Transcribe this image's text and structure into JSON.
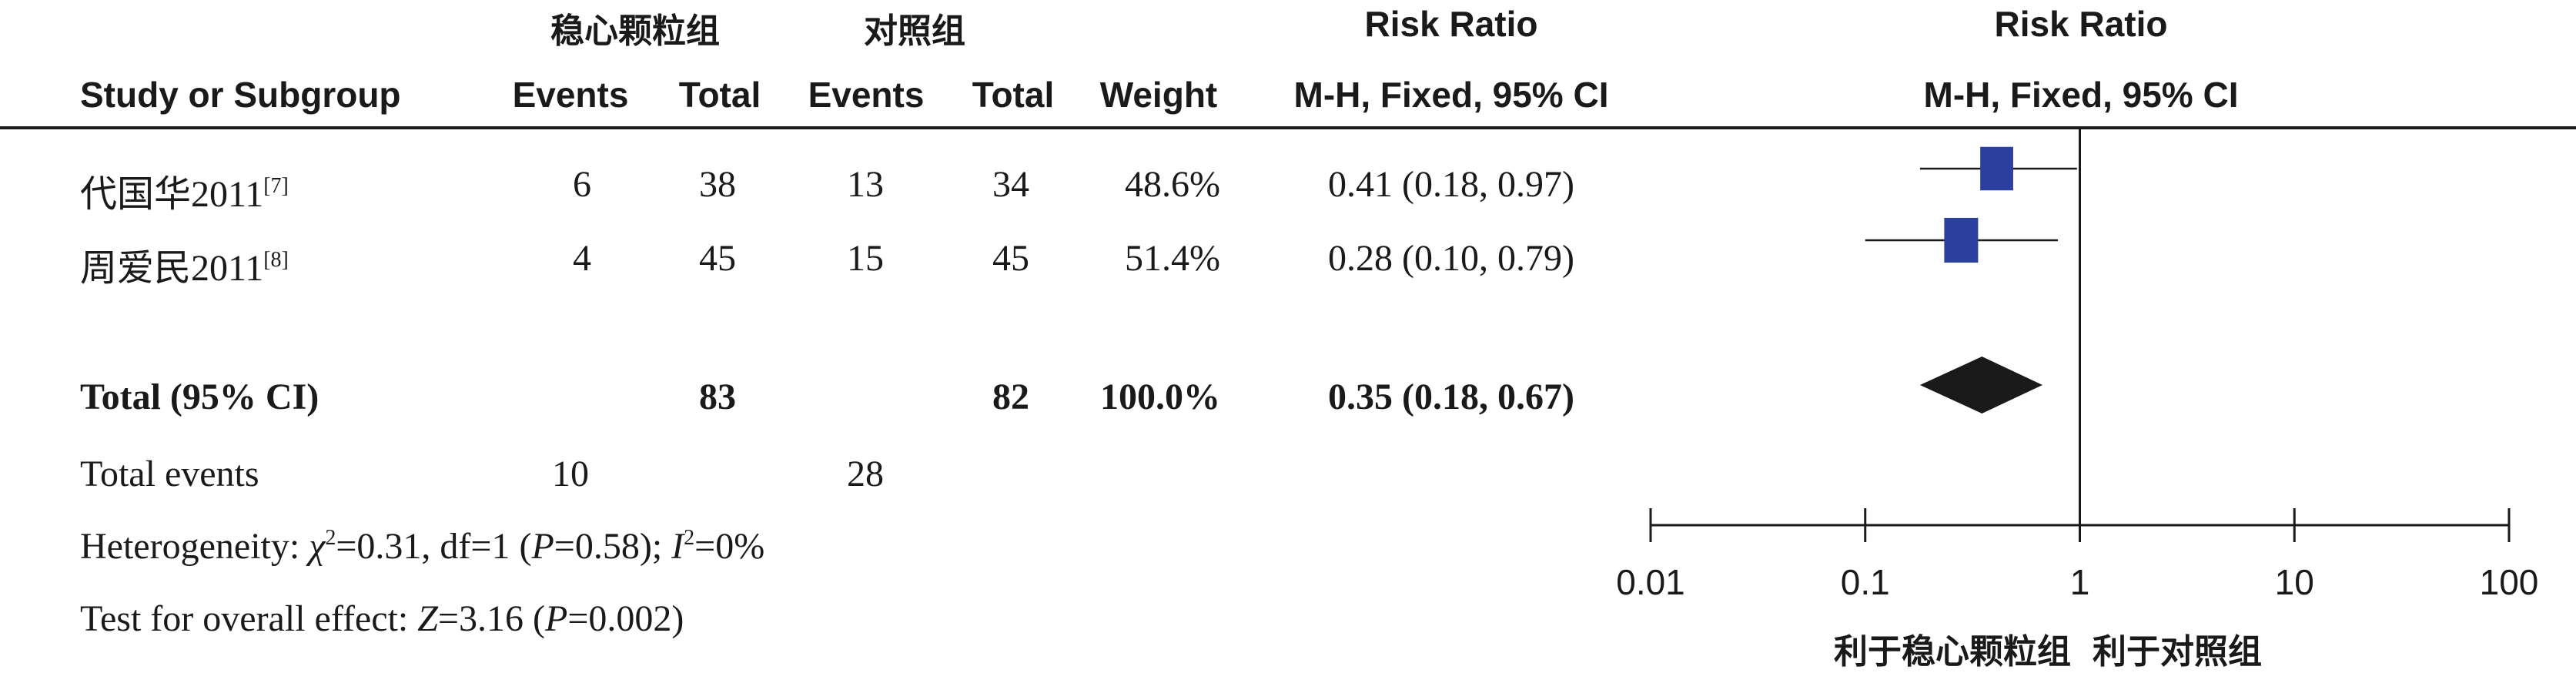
{
  "header": {
    "group_experimental": "稳心颗粒组",
    "group_control": "对照组",
    "study_col": "Study or Subgroup",
    "events": "Events",
    "total": "Total",
    "weight": "Weight",
    "rr_title_table": "Risk Ratio",
    "rr_method_table": "M-H, Fixed, 95% CI",
    "rr_title_plot": "Risk Ratio",
    "rr_method_plot": "M-H, Fixed, 95% CI"
  },
  "studies": [
    {
      "name": "代国华2011",
      "ref": "[7]",
      "exp_events": "6",
      "exp_total": "38",
      "ctl_events": "13",
      "ctl_total": "34",
      "weight": "48.6%",
      "ci_text": "0.41 (0.18, 0.97)"
    },
    {
      "name": "周爱民2011",
      "ref": "[8]",
      "exp_events": "4",
      "exp_total": "45",
      "ctl_events": "15",
      "ctl_total": "45",
      "weight": "51.4%",
      "ci_text": "0.28 (0.10, 0.79)"
    }
  ],
  "total_row": {
    "label": "Total (95% CI)",
    "exp_total": "83",
    "ctl_total": "82",
    "weight": "100.0%",
    "ci_text": "0.35 (0.18, 0.67)"
  },
  "total_events": {
    "label": "Total events",
    "exp_events": "10",
    "ctl_events": "28"
  },
  "heterogeneity": {
    "prefix": "Heterogeneity: ",
    "chi": "χ",
    "chi_value": "=0.31, df=1 (",
    "p": "P",
    "p_value": "=0.58); ",
    "i": "I",
    "i_value": "=0%"
  },
  "overall_effect": {
    "prefix": "Test for overall effect: ",
    "z": "Z",
    "z_value": "=3.16 (",
    "p": "P",
    "p_value": "=0.002)"
  },
  "axis": {
    "favours_experimental": "利于稳心颗粒组",
    "favours_control": "利于对照组"
  },
  "chart_data": {
    "type": "forest",
    "scale": "log",
    "xlim": [
      0.01,
      100
    ],
    "ticks": [
      0.01,
      0.1,
      1,
      10,
      100
    ],
    "tick_labels": [
      "0.01",
      "0.1",
      "1",
      "10",
      "100"
    ],
    "null_line": 1,
    "marker_color": "#2b3f9e",
    "diamond_color": "#1a1a1a",
    "studies": [
      {
        "name": "代国华2011",
        "rr": 0.41,
        "lower": 0.18,
        "upper": 0.97,
        "weight": 48.6
      },
      {
        "name": "周爱民2011",
        "rr": 0.28,
        "lower": 0.1,
        "upper": 0.79,
        "weight": 51.4
      }
    ],
    "pooled": {
      "rr": 0.35,
      "lower": 0.18,
      "upper": 0.67
    }
  }
}
